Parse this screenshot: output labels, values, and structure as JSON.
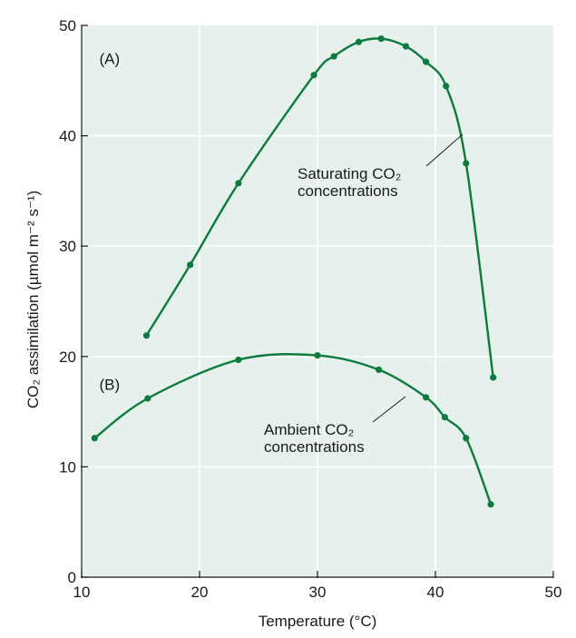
{
  "chart_data": {
    "type": "line",
    "xlabel": "Temperature (°C)",
    "ylabel": "CO₂ assimilation (µmol m⁻² s⁻¹)",
    "xlim": [
      10,
      50
    ],
    "ylim": [
      0,
      50
    ],
    "xticks": [
      "10",
      "20",
      "30",
      "40",
      "50"
    ],
    "yticks": [
      "0",
      "10",
      "20",
      "30",
      "40",
      "50"
    ],
    "grid": true,
    "colors": {
      "series": "#0e7a3e",
      "plot_bg": "#e6f1ee",
      "grid": "#ffffff",
      "axis": "#1a1a1a"
    },
    "panel_labels": [
      "(A)",
      "(B)"
    ],
    "annotations": [
      {
        "lines": [
          "Saturating CO₂",
          "concentrations"
        ]
      },
      {
        "lines": [
          "Ambient CO₂",
          "concentrations"
        ]
      }
    ],
    "series": [
      {
        "x": [
          15.5,
          19.2,
          23.3,
          29.7,
          31.4,
          33.5,
          35.4,
          37.5,
          39.2,
          40.9,
          42.6,
          44.9
        ],
        "y": [
          21.9,
          28.3,
          35.7,
          45.5,
          47.2,
          48.5,
          48.8,
          48.1,
          46.7,
          44.5,
          37.5,
          18.1
        ]
      },
      {
        "x": [
          11.1,
          15.6,
          23.3,
          30.0,
          35.2,
          39.2,
          40.8,
          42.6,
          44.7
        ],
        "y": [
          12.6,
          16.2,
          19.7,
          20.1,
          18.8,
          16.3,
          14.5,
          12.6,
          6.6
        ]
      }
    ]
  }
}
